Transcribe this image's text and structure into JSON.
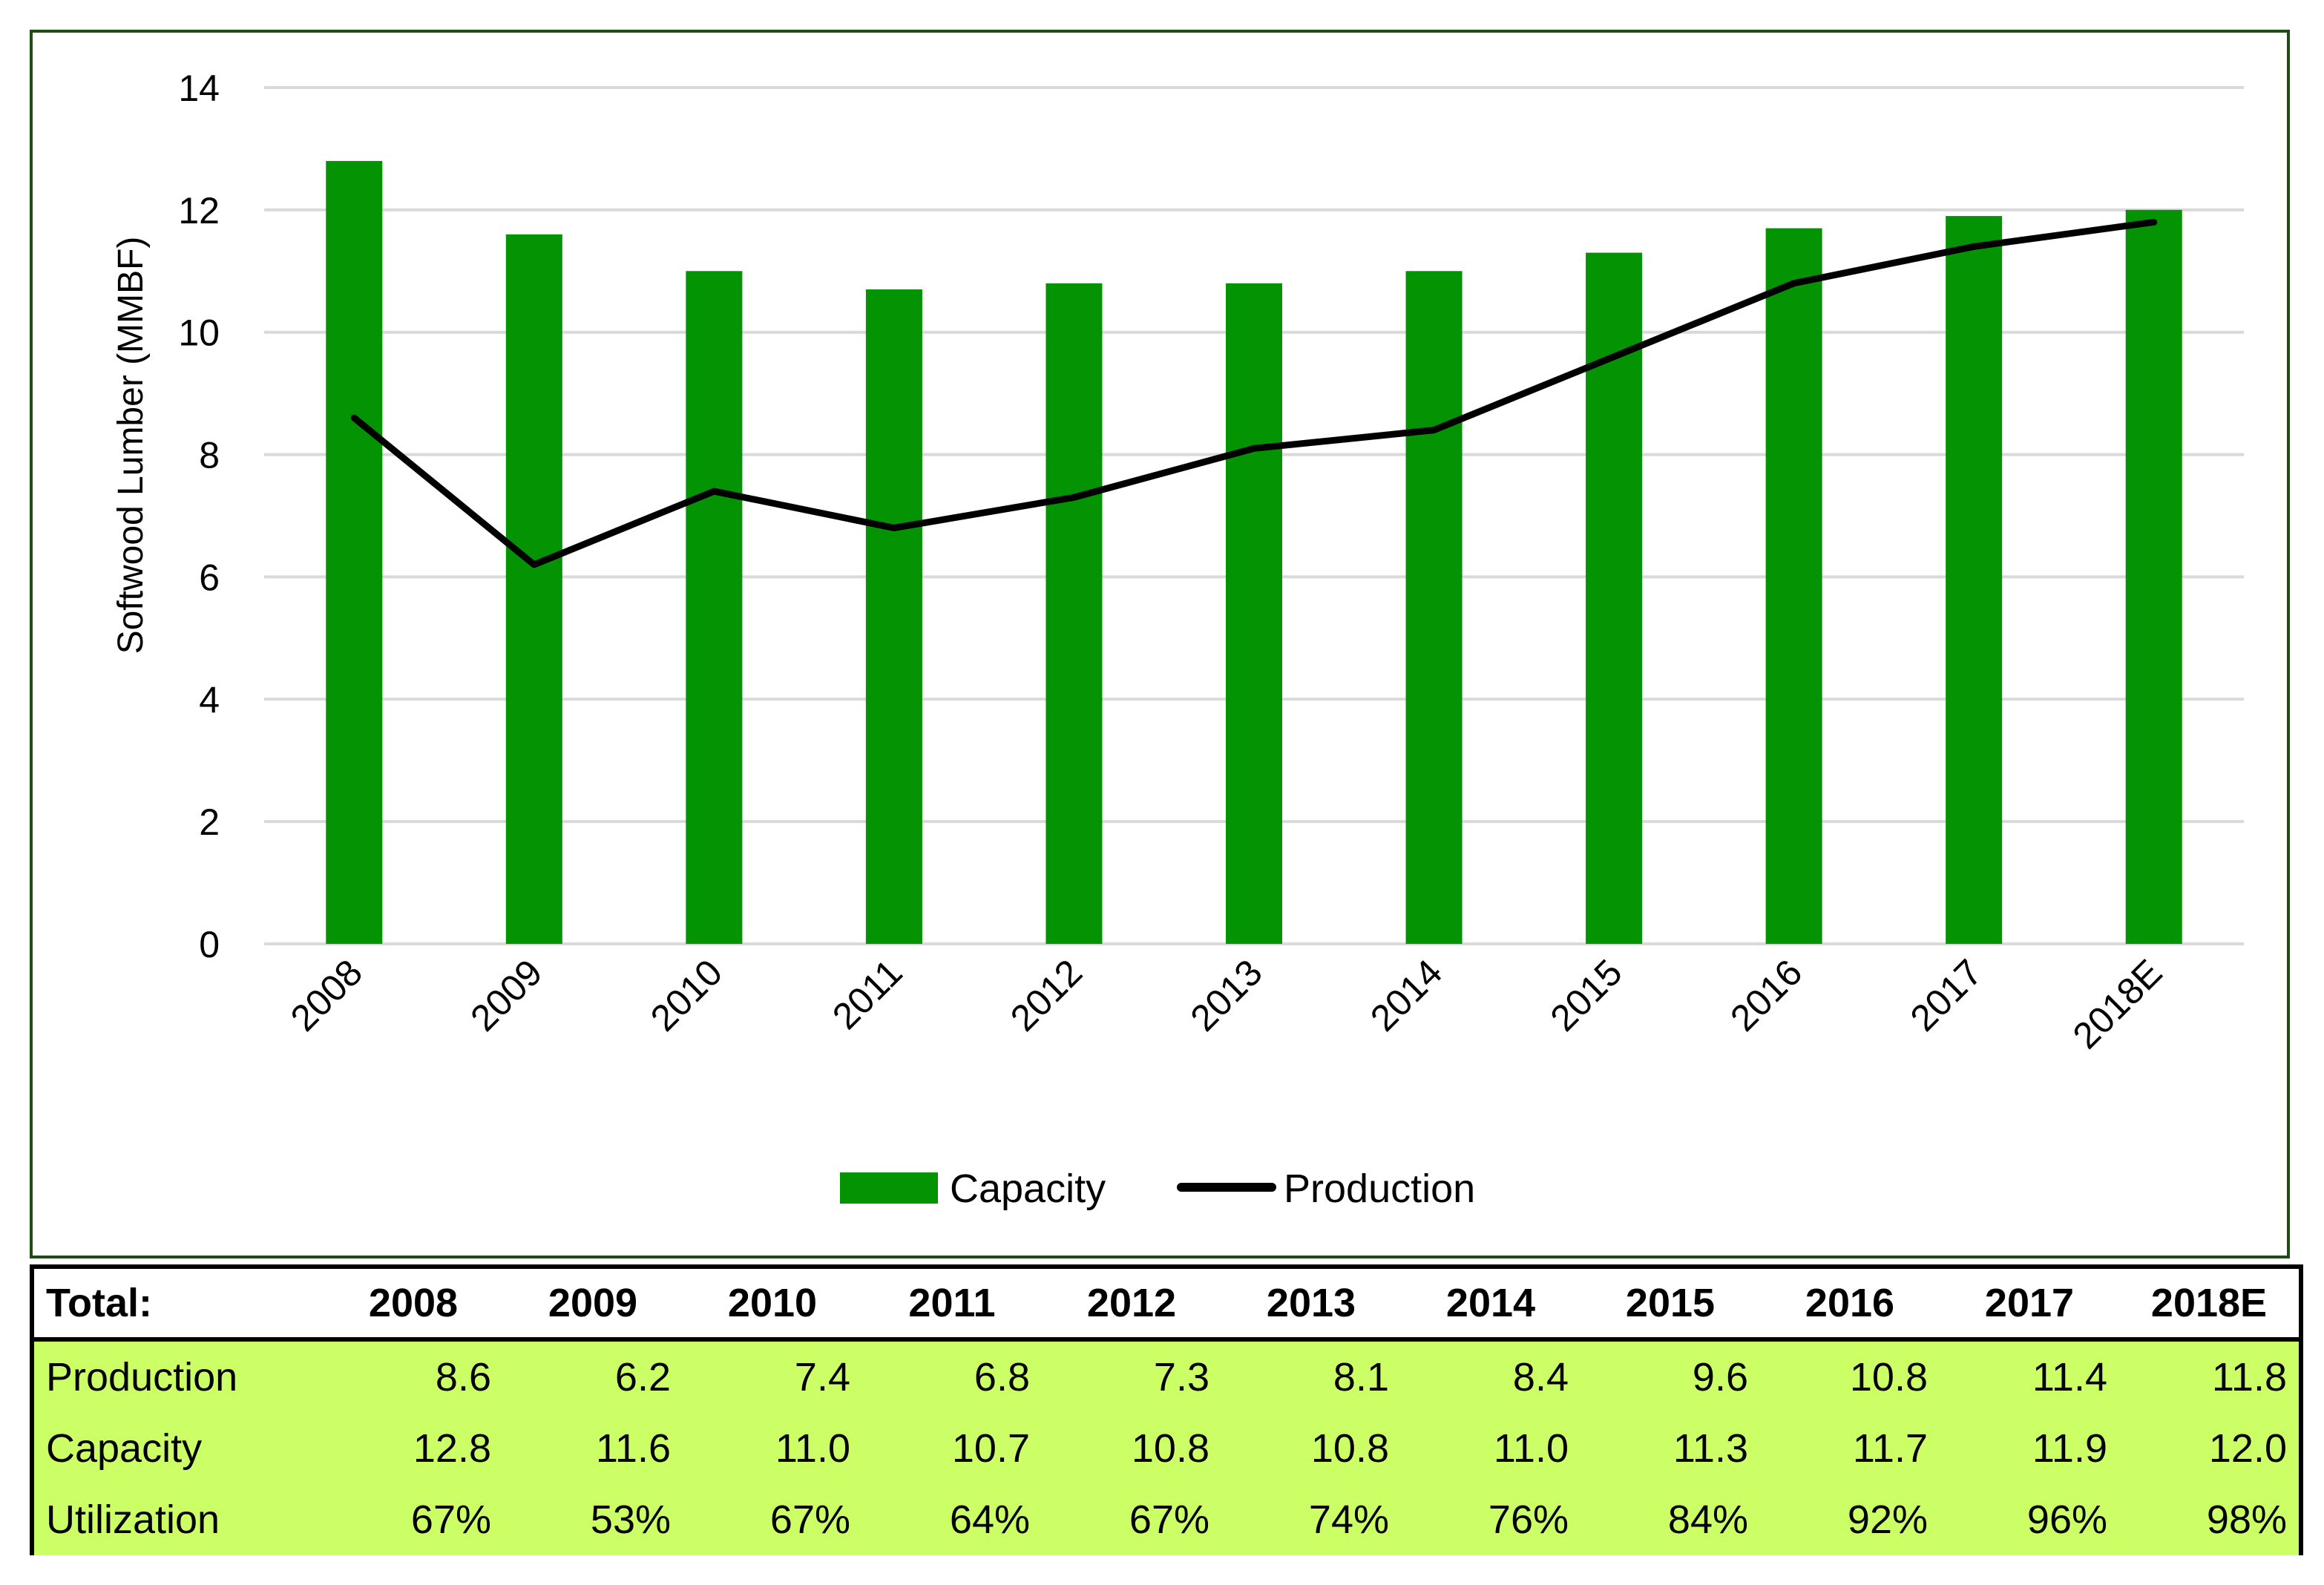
{
  "chart_data": {
    "type": "bar",
    "title": "",
    "xlabel": "",
    "ylabel": "Softwood Lumber (MMBF)",
    "ylim": [
      0,
      14
    ],
    "yticks": [
      0,
      2,
      4,
      6,
      8,
      10,
      12,
      14
    ],
    "grid": true,
    "legend_position": "bottom",
    "categories": [
      "2008",
      "2009",
      "2010",
      "2011",
      "2012",
      "2013",
      "2014",
      "2015",
      "2016",
      "2017",
      "2018E"
    ],
    "series": [
      {
        "name": "Capacity",
        "type": "bar",
        "color": "#039303",
        "values": [
          12.8,
          11.6,
          11.0,
          10.7,
          10.8,
          10.8,
          11.0,
          11.3,
          11.7,
          11.9,
          12.0
        ]
      },
      {
        "name": "Production",
        "type": "line",
        "color": "#000000",
        "values": [
          8.6,
          6.2,
          7.4,
          6.8,
          7.3,
          8.1,
          8.4,
          9.6,
          10.8,
          11.4,
          11.8
        ]
      }
    ]
  },
  "table": {
    "header_label": "Total:",
    "columns": [
      "2008",
      "2009",
      "2010",
      "2011",
      "2012",
      "2013",
      "2014",
      "2015",
      "2016",
      "2017",
      "2018E"
    ],
    "rows": [
      {
        "label": "Production",
        "values": [
          "8.6",
          "6.2",
          "7.4",
          "6.8",
          "7.3",
          "8.1",
          "8.4",
          "9.6",
          "10.8",
          "11.4",
          "11.8"
        ]
      },
      {
        "label": "Capacity",
        "values": [
          "12.8",
          "11.6",
          "11.0",
          "10.7",
          "10.8",
          "10.8",
          "11.0",
          "11.3",
          "11.7",
          "11.9",
          "12.0"
        ]
      },
      {
        "label": "Utilization",
        "values": [
          "67%",
          "53%",
          "67%",
          "64%",
          "67%",
          "74%",
          "76%",
          "84%",
          "92%",
          "96%",
          "98%"
        ]
      }
    ],
    "body_color": "#ccff66"
  }
}
